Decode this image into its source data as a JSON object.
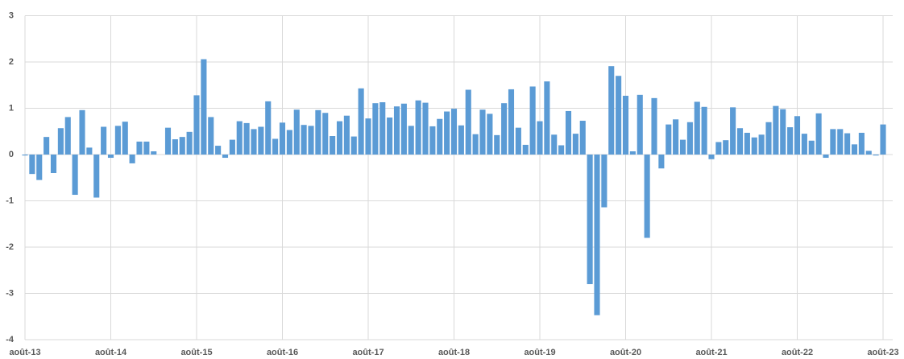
{
  "chart_data": {
    "type": "bar",
    "color": "#5b9bd5",
    "grid": true,
    "categories": [
      "août-13",
      null,
      null,
      null,
      null,
      null,
      null,
      null,
      null,
      null,
      null,
      null,
      "août-14",
      null,
      null,
      null,
      null,
      null,
      null,
      null,
      null,
      null,
      null,
      null,
      "août-15",
      null,
      null,
      null,
      null,
      null,
      null,
      null,
      null,
      null,
      null,
      null,
      "août-16",
      null,
      null,
      null,
      null,
      null,
      null,
      null,
      null,
      null,
      null,
      null,
      "août-17",
      null,
      null,
      null,
      null,
      null,
      null,
      null,
      null,
      null,
      null,
      null,
      "août-18",
      null,
      null,
      null,
      null,
      null,
      null,
      null,
      null,
      null,
      null,
      null,
      "août-19",
      null,
      null,
      null,
      null,
      null,
      null,
      null,
      null,
      null,
      null,
      null,
      "août-20",
      null,
      null,
      null,
      null,
      null,
      null,
      null,
      null,
      null,
      null,
      null,
      "août-21",
      null,
      null,
      null,
      null,
      null,
      null,
      null,
      null,
      null,
      null,
      null,
      "août-22",
      null,
      null,
      null,
      null,
      null,
      null,
      null,
      null,
      null,
      null,
      null,
      "août-23"
    ],
    "values": [
      -0.02,
      -0.42,
      -0.55,
      0.38,
      -0.4,
      0.57,
      0.81,
      -0.87,
      0.96,
      0.15,
      -0.93,
      0.6,
      -0.07,
      0.62,
      0.71,
      -0.19,
      0.28,
      0.28,
      0.07,
      0,
      0.58,
      0.33,
      0.38,
      0.49,
      1.28,
      2.06,
      0.81,
      0.19,
      -0.07,
      0.32,
      0.72,
      0.68,
      0.55,
      0.6,
      1.15,
      0.34,
      0.69,
      0.53,
      0.97,
      0.64,
      0.62,
      0.96,
      0.9,
      0.4,
      0.72,
      0.84,
      0.39,
      1.43,
      0.78,
      1.11,
      1.13,
      0.8,
      1.04,
      1.1,
      0.62,
      1.17,
      1.12,
      0.61,
      0.77,
      0.93,
      0.99,
      0.63,
      1.4,
      0.44,
      0.97,
      0.88,
      0.42,
      1.11,
      1.41,
      0.58,
      0.21,
      1.47,
      0.72,
      1.58,
      0.43,
      0.2,
      0.94,
      0.45,
      0.73,
      -2.8,
      -3.47,
      -1.14,
      1.91,
      1.7,
      1.27,
      0.07,
      1.29,
      -1.8,
      1.22,
      -0.3,
      0.65,
      0.76,
      0.32,
      0.7,
      1.14,
      1.03,
      -0.1,
      0.27,
      0.31,
      1.02,
      0.57,
      0.47,
      0.37,
      0.43,
      0.7,
      1.05,
      0.98,
      0.59,
      0.83,
      0.45,
      0.3,
      0.89,
      -0.07,
      0.55,
      0.55,
      0.46,
      0.22,
      0.47,
      0.08,
      -0.02,
      0.65
    ],
    "ylim": [
      -4,
      3
    ],
    "yticks": [
      -4,
      -3,
      -2,
      -1,
      0,
      1,
      2,
      3
    ]
  }
}
